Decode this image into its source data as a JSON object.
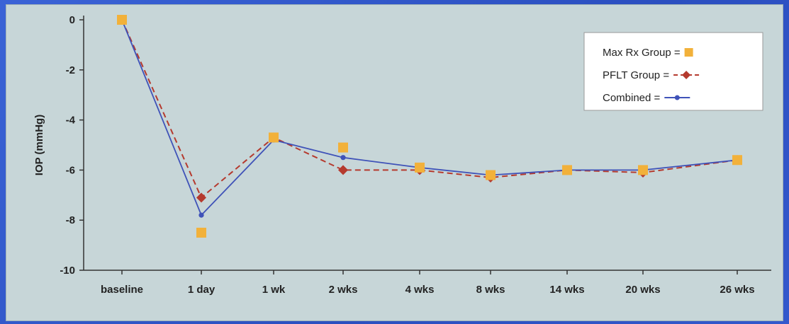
{
  "chart_data": {
    "type": "line",
    "title": "",
    "xlabel": "",
    "ylabel": "IOP (mmHg)",
    "ylim": [
      -10,
      0
    ],
    "yticks": [
      0,
      -2,
      -4,
      -6,
      -8,
      -10
    ],
    "categories": [
      "baseline",
      "1 day",
      "1 wk",
      "2 wks",
      "4 wks",
      "8 wks",
      "14 wks",
      "20 wks",
      "26 wks"
    ],
    "series": [
      {
        "name": "Max Rx Group",
        "legend_label": "Max Rx Group =",
        "marker": "square",
        "color": "#f2b13a",
        "values": [
          0,
          -8.5,
          -4.7,
          -5.1,
          -5.9,
          -6.2,
          -6.0,
          -6.0,
          -5.6
        ]
      },
      {
        "name": "PFLT Group",
        "legend_label": "PFLT Group =",
        "marker": "diamond",
        "color": "#b53a2e",
        "dashed": true,
        "values": [
          0,
          -7.1,
          -4.7,
          -6.0,
          -6.0,
          -6.3,
          -6.0,
          -6.1,
          -5.6
        ]
      },
      {
        "name": "Combined",
        "legend_label": "Combined =",
        "marker": "circle",
        "color": "#3f52b8",
        "values": [
          0,
          -7.8,
          -4.8,
          -5.5,
          -5.9,
          -6.2,
          -6.0,
          -6.0,
          -5.6
        ]
      }
    ],
    "grid": false,
    "legend": "top-right"
  }
}
